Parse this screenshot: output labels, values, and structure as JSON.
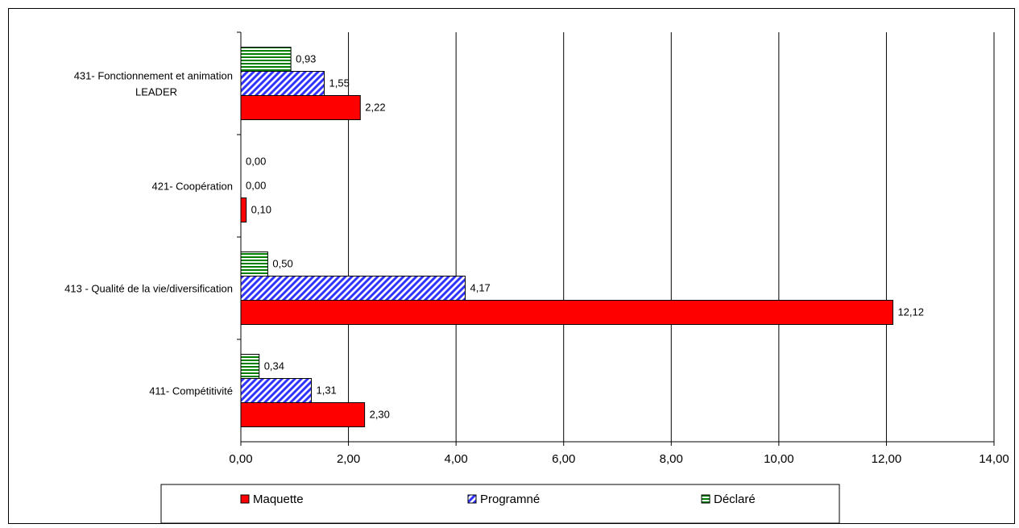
{
  "chart_data": {
    "type": "bar",
    "orientation": "horizontal",
    "categories": [
      "411- Compétitivité",
      "413 - Qualité de la vie/diversification",
      "421- Coopération",
      "431- Fonctionnement et animation LEADER"
    ],
    "category_lines": [
      [
        "411- Compétitivité"
      ],
      [
        "413 - Qualité de la vie/diversification"
      ],
      [
        "421- Coopération"
      ],
      [
        "431- Fonctionnement et animation",
        "LEADER"
      ]
    ],
    "series": [
      {
        "name": "Maquette",
        "values": [
          2.3,
          12.12,
          0.1,
          2.22
        ],
        "labels": [
          "2,30",
          "12,12",
          "0,10",
          "2,22"
        ],
        "color": "#ff0000",
        "pattern": "solid"
      },
      {
        "name": "Programné",
        "values": [
          1.31,
          4.17,
          0.0,
          1.55
        ],
        "labels": [
          "1,31",
          "4,17",
          "0,00",
          "1,55"
        ],
        "color": "#3333ff",
        "pattern": "diagonal"
      },
      {
        "name": "Déclaré",
        "values": [
          0.34,
          0.5,
          0.0,
          0.93
        ],
        "labels": [
          "0,34",
          "0,50",
          "0,00",
          "0,93"
        ],
        "color": "#008000",
        "pattern": "horizontal"
      }
    ],
    "xlim": [
      0,
      14
    ],
    "x_ticks": [
      "0,00",
      "2,00",
      "4,00",
      "6,00",
      "8,00",
      "10,00",
      "12,00",
      "14,00"
    ],
    "grid": "vertical",
    "legend": {
      "position": "bottom",
      "entries": [
        "Maquette",
        "Programné",
        "Déclaré"
      ]
    }
  }
}
